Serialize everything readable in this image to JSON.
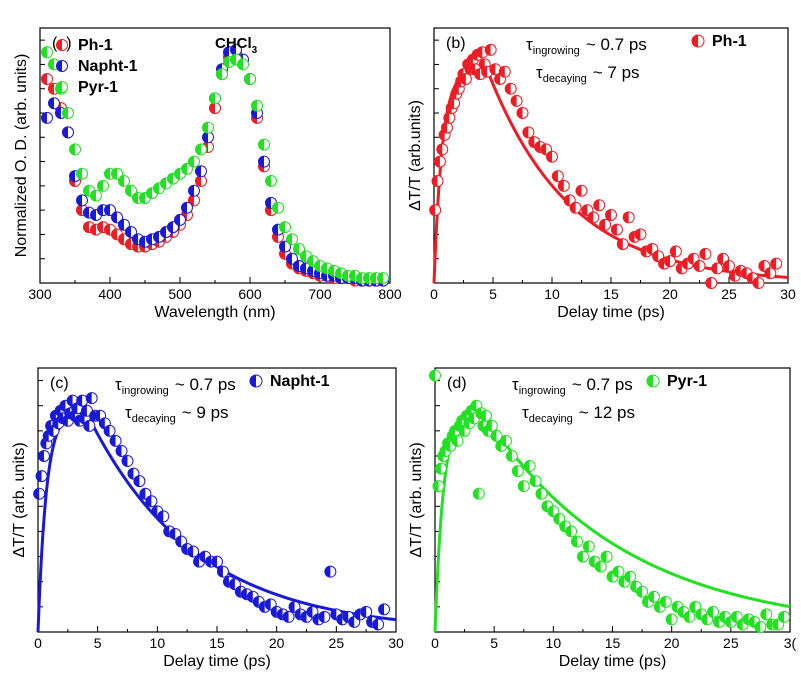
{
  "colors": {
    "red": "#ee1c24",
    "blue": "#1a1ad6",
    "green": "#22e022"
  },
  "chart_data": [
    {
      "id": "a",
      "type": "scatter",
      "panel_label": "(a)",
      "annotation": "CHCl",
      "annotation_sub": "3",
      "xlabel": "Wavelength (nm)",
      "ylabel": "Normalized O. D. (arb. units)",
      "xlim": [
        300,
        800
      ],
      "ylim": [
        0,
        1.05
      ],
      "xticks": [
        "300",
        "400",
        "500",
        "600",
        "700",
        "800"
      ],
      "legend_position": "top-left",
      "series": [
        {
          "name": "Ph-1",
          "color": "red",
          "x": [
            310,
            320,
            330,
            340,
            350,
            360,
            370,
            380,
            390,
            400,
            410,
            420,
            430,
            440,
            450,
            460,
            470,
            480,
            490,
            500,
            510,
            520,
            530,
            540,
            550,
            560,
            570,
            580,
            590,
            600,
            610,
            620,
            630,
            640,
            650,
            660,
            670,
            680,
            690,
            700,
            710,
            720,
            730,
            740,
            750,
            760,
            770,
            780,
            790
          ],
          "y": [
            0.84,
            0.8,
            0.72,
            0.62,
            0.42,
            0.3,
            0.23,
            0.22,
            0.23,
            0.22,
            0.2,
            0.18,
            0.16,
            0.15,
            0.15,
            0.16,
            0.17,
            0.19,
            0.21,
            0.24,
            0.28,
            0.34,
            0.42,
            0.56,
            0.72,
            0.86,
            0.93,
            0.95,
            0.92,
            0.84,
            0.68,
            0.48,
            0.3,
            0.19,
            0.12,
            0.08,
            0.06,
            0.05,
            0.04,
            0.03,
            0.03,
            0.02,
            0.02,
            0.02,
            0.01,
            0.01,
            0.01,
            0.01,
            0.01
          ]
        },
        {
          "name": "Napht-1",
          "color": "blue",
          "x": [
            310,
            320,
            330,
            340,
            350,
            360,
            370,
            380,
            390,
            400,
            410,
            420,
            430,
            440,
            450,
            460,
            470,
            480,
            490,
            500,
            510,
            520,
            530,
            540,
            550,
            560,
            570,
            580,
            590,
            600,
            610,
            620,
            630,
            640,
            650,
            660,
            670,
            680,
            690,
            700,
            710,
            720,
            730,
            740,
            750,
            760,
            770,
            780,
            790
          ],
          "y": [
            0.68,
            0.74,
            0.7,
            0.62,
            0.44,
            0.34,
            0.29,
            0.28,
            0.3,
            0.3,
            0.27,
            0.24,
            0.21,
            0.18,
            0.17,
            0.18,
            0.19,
            0.21,
            0.23,
            0.26,
            0.31,
            0.38,
            0.46,
            0.6,
            0.76,
            0.88,
            0.95,
            0.96,
            0.92,
            0.84,
            0.7,
            0.5,
            0.33,
            0.22,
            0.15,
            0.1,
            0.07,
            0.06,
            0.05,
            0.04,
            0.03,
            0.03,
            0.02,
            0.02,
            0.02,
            0.01,
            0.01,
            0.01,
            0.01
          ]
        },
        {
          "name": "Pyr-1",
          "color": "green",
          "x": [
            310,
            320,
            330,
            340,
            350,
            360,
            370,
            380,
            390,
            400,
            410,
            420,
            430,
            440,
            450,
            460,
            470,
            480,
            490,
            500,
            510,
            520,
            530,
            540,
            550,
            560,
            570,
            580,
            590,
            600,
            610,
            620,
            630,
            640,
            650,
            660,
            670,
            680,
            690,
            700,
            710,
            720,
            730,
            740,
            750,
            760,
            770,
            780,
            790
          ],
          "y": [
            0.95,
            0.9,
            0.8,
            0.7,
            0.55,
            0.45,
            0.38,
            0.36,
            0.4,
            0.45,
            0.45,
            0.42,
            0.38,
            0.35,
            0.35,
            0.37,
            0.39,
            0.41,
            0.43,
            0.45,
            0.47,
            0.5,
            0.55,
            0.64,
            0.76,
            0.86,
            0.91,
            0.92,
            0.9,
            0.84,
            0.73,
            0.57,
            0.42,
            0.31,
            0.23,
            0.18,
            0.14,
            0.11,
            0.09,
            0.07,
            0.06,
            0.05,
            0.04,
            0.03,
            0.03,
            0.02,
            0.02,
            0.02,
            0.02
          ]
        }
      ]
    },
    {
      "id": "b",
      "type": "scatter",
      "panel_label": "(b)",
      "xlabel": "Delay time (ps)",
      "ylabel": "ΔT/T (arb.units)",
      "xlim": [
        0,
        30
      ],
      "ylim": [
        0,
        1.05
      ],
      "xticks": [
        "0",
        "5",
        "10",
        "15",
        "20",
        "25",
        "30"
      ],
      "tau_rise": "ingrowing",
      "tau_rise_value": "~ 0.7 ps",
      "tau_decay": "decaying",
      "tau_decay_value": "~ 7 ps",
      "legend_position": "top-right",
      "series": [
        {
          "name": "Ph-1",
          "color": "red",
          "x": [
            0.1,
            0.3,
            0.5,
            0.7,
            0.9,
            1.1,
            1.3,
            1.5,
            1.7,
            1.9,
            2.1,
            2.3,
            2.5,
            2.7,
            2.9,
            3.1,
            3.3,
            3.5,
            3.7,
            3.9,
            4.1,
            4.3,
            4.5,
            4.8,
            5.2,
            5.6,
            6.0,
            6.5,
            7.0,
            7.5,
            8.0,
            8.5,
            9.0,
            9.5,
            10.0,
            10.5,
            11.0,
            11.5,
            12.0,
            12.5,
            13.0,
            13.5,
            14.0,
            14.5,
            15.0,
            15.5,
            16.0,
            16.5,
            17.0,
            17.5,
            18.0,
            18.5,
            19.0,
            19.5,
            20.0,
            20.5,
            21.0,
            21.5,
            22.0,
            22.5,
            23.0,
            23.5,
            24.0,
            24.5,
            25.0,
            25.5,
            26.0,
            26.5,
            27.0,
            27.5,
            28.0,
            28.5,
            29.0
          ],
          "y": [
            0.3,
            0.42,
            0.5,
            0.55,
            0.61,
            0.64,
            0.68,
            0.72,
            0.74,
            0.78,
            0.8,
            0.83,
            0.86,
            0.84,
            0.9,
            0.88,
            0.92,
            0.88,
            0.94,
            0.86,
            0.95,
            0.9,
            0.87,
            0.96,
            0.88,
            0.84,
            0.87,
            0.8,
            0.75,
            0.7,
            0.62,
            0.58,
            0.56,
            0.55,
            0.52,
            0.44,
            0.4,
            0.34,
            0.31,
            0.38,
            0.3,
            0.27,
            0.32,
            0.24,
            0.28,
            0.22,
            0.16,
            0.27,
            0.19,
            0.2,
            0.13,
            0.14,
            0.11,
            0.08,
            0.09,
            0.13,
            0.06,
            0.08,
            0.1,
            0.07,
            0.12,
            0.0,
            0.06,
            0.1,
            0.07,
            0.03,
            0.05,
            0.04,
            0.02,
            0.0,
            0.07,
            0.04,
            0.08
          ]
        }
      ],
      "fit": {
        "color": "red",
        "rise": 0.7,
        "decay": 7,
        "peak_time": 4.5
      }
    },
    {
      "id": "c",
      "type": "scatter",
      "panel_label": "(c)",
      "xlabel": "Delay time (ps)",
      "ylabel": "ΔT/T (arb. units)",
      "xlim": [
        0,
        30
      ],
      "ylim": [
        0,
        1.05
      ],
      "xticks": [
        "0",
        "5",
        "10",
        "15",
        "20",
        "25",
        "30"
      ],
      "tau_rise": "ingrowing",
      "tau_rise_value": "~ 0.7 ps",
      "tau_decay": "decaying",
      "tau_decay_value": "~ 9 ps",
      "legend_position": "top-right",
      "series": [
        {
          "name": "Napht-1",
          "color": "blue",
          "x": [
            0.1,
            0.3,
            0.5,
            0.7,
            0.9,
            1.1,
            1.3,
            1.5,
            1.7,
            1.9,
            2.1,
            2.3,
            2.5,
            2.7,
            2.9,
            3.1,
            3.3,
            3.5,
            3.7,
            3.9,
            4.1,
            4.3,
            4.5,
            4.8,
            5.2,
            5.6,
            6.0,
            6.5,
            7.0,
            7.5,
            8.0,
            8.5,
            9.0,
            9.5,
            10.0,
            10.5,
            11.0,
            11.5,
            12.0,
            12.5,
            13.0,
            13.5,
            14.0,
            14.5,
            15.0,
            15.5,
            16.0,
            16.5,
            17.0,
            17.5,
            18.0,
            18.5,
            19.0,
            19.5,
            20.0,
            20.5,
            21.0,
            21.5,
            22.0,
            22.5,
            23.0,
            23.5,
            24.0,
            24.5,
            25.0,
            25.5,
            26.0,
            26.5,
            27.0,
            27.5,
            28.0,
            28.5,
            29.0
          ],
          "y": [
            0.55,
            0.62,
            0.7,
            0.75,
            0.78,
            0.82,
            0.8,
            0.86,
            0.83,
            0.88,
            0.85,
            0.9,
            0.84,
            0.87,
            0.92,
            0.86,
            0.89,
            0.84,
            0.92,
            0.85,
            0.88,
            0.82,
            0.93,
            0.86,
            0.86,
            0.83,
            0.8,
            0.76,
            0.72,
            0.68,
            0.63,
            0.6,
            0.55,
            0.52,
            0.48,
            0.46,
            0.4,
            0.39,
            0.36,
            0.33,
            0.32,
            0.28,
            0.3,
            0.28,
            0.28,
            0.24,
            0.2,
            0.19,
            0.16,
            0.15,
            0.14,
            0.12,
            0.1,
            0.11,
            0.08,
            0.07,
            0.06,
            0.1,
            0.07,
            0.06,
            0.08,
            0.05,
            0.06,
            0.24,
            0.07,
            0.05,
            0.06,
            0.04,
            0.07,
            0.08,
            0.04,
            0.03,
            0.09
          ]
        }
      ],
      "fit": {
        "color": "blue",
        "rise": 0.7,
        "decay": 9,
        "peak_time": 4.0
      }
    },
    {
      "id": "d",
      "type": "scatter",
      "panel_label": "(d)",
      "xlabel": "Delay time (ps)",
      "ylabel": "ΔT/T (arb. units)",
      "xlim": [
        0,
        30
      ],
      "ylim": [
        0,
        1.05
      ],
      "xticks": [
        "0",
        "5",
        "10",
        "15",
        "20",
        "25",
        "3("
      ],
      "tau_rise": "ingrowing",
      "tau_rise_value": "~ 0.7 ps",
      "tau_decay": "decaying",
      "tau_decay_value": "~ 12 ps",
      "legend_position": "top-right",
      "series": [
        {
          "name": "Pyr-1",
          "color": "green",
          "x": [
            0.0,
            0.3,
            0.5,
            0.7,
            0.9,
            1.1,
            1.3,
            1.5,
            1.7,
            1.9,
            2.1,
            2.3,
            2.5,
            2.7,
            2.9,
            3.1,
            3.3,
            3.5,
            3.7,
            3.9,
            4.1,
            4.3,
            4.5,
            4.8,
            5.2,
            5.6,
            6.0,
            6.5,
            7.0,
            7.5,
            8.0,
            8.5,
            9.0,
            9.5,
            10.0,
            10.5,
            11.0,
            11.5,
            12.0,
            12.5,
            13.0,
            13.5,
            14.0,
            14.5,
            15.0,
            15.5,
            16.0,
            16.5,
            17.0,
            17.5,
            18.0,
            18.5,
            19.0,
            19.5,
            20.0,
            20.5,
            21.0,
            21.5,
            22.0,
            22.5,
            23.0,
            23.5,
            24.0,
            24.5,
            25.0,
            25.5,
            26.0,
            26.5,
            27.0,
            27.5,
            28.0,
            28.5,
            29.0,
            29.5
          ],
          "y": [
            1.02,
            0.58,
            0.65,
            0.7,
            0.72,
            0.75,
            0.74,
            0.78,
            0.8,
            0.76,
            0.82,
            0.84,
            0.8,
            0.86,
            0.83,
            0.88,
            0.85,
            0.9,
            0.55,
            0.87,
            0.82,
            0.86,
            0.8,
            0.82,
            0.78,
            0.74,
            0.76,
            0.7,
            0.64,
            0.58,
            0.66,
            0.6,
            0.55,
            0.5,
            0.48,
            0.45,
            0.42,
            0.4,
            0.36,
            0.3,
            0.34,
            0.28,
            0.26,
            0.3,
            0.22,
            0.24,
            0.2,
            0.22,
            0.18,
            0.16,
            0.12,
            0.14,
            0.1,
            0.12,
            0.05,
            0.1,
            0.08,
            0.06,
            0.1,
            0.07,
            0.05,
            0.08,
            0.04,
            0.06,
            0.04,
            0.06,
            0.03,
            0.05,
            0.04,
            0.02,
            0.07,
            0.03,
            0.03,
            0.06
          ]
        }
      ],
      "fit": {
        "color": "green",
        "rise": 0.7,
        "decay": 12,
        "peak_time": 4.0
      }
    }
  ]
}
